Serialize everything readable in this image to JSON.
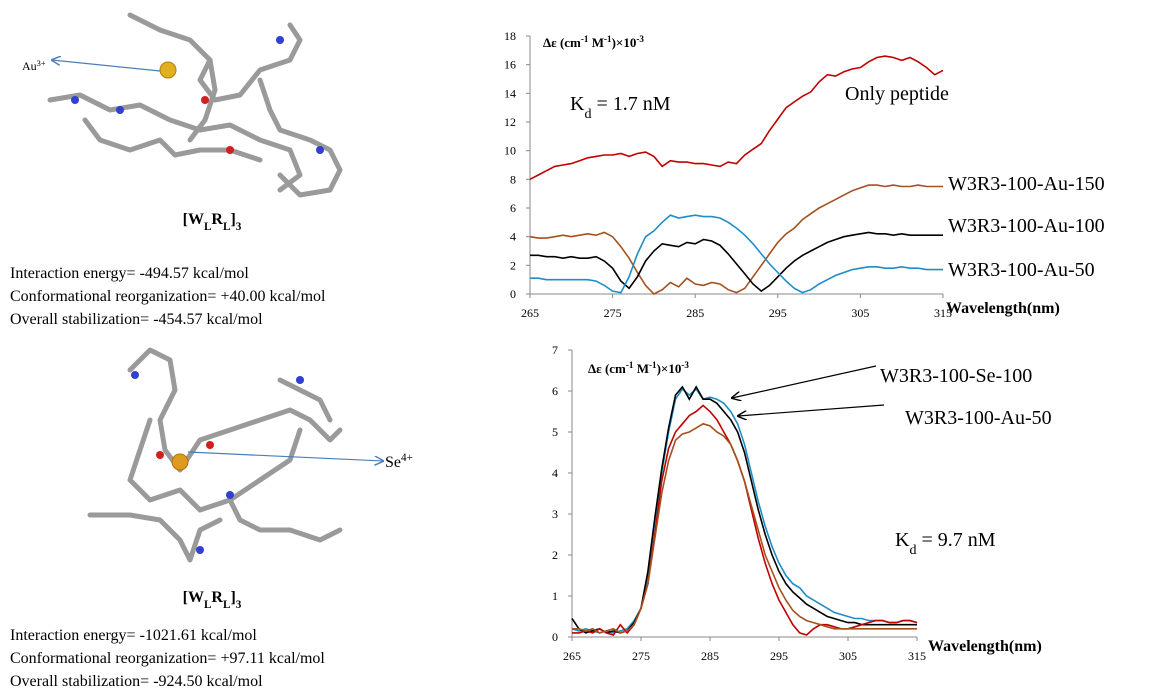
{
  "structures": [
    {
      "ion": [
        {
          "text": "Au"
        },
        {
          "text": "3+",
          "sup": true
        }
      ],
      "label": [
        {
          "text": "[W"
        },
        {
          "text": "L",
          "sub": true
        },
        {
          "text": "R"
        },
        {
          "text": "L",
          "sub": true
        },
        {
          "text": "]"
        },
        {
          "text": "3",
          "sub": true
        }
      ],
      "lines": [
        "Interaction energy= -494.57 kcal/mol",
        "Conformational reorganization= +40.00 kcal/mol",
        "Overall stabilization= -454.57 kcal/mol"
      ]
    },
    {
      "ion": [
        {
          "text": "Se"
        },
        {
          "text": "4+",
          "sup": true
        }
      ],
      "label": [
        {
          "text": "[W"
        },
        {
          "text": "L",
          "sub": true
        },
        {
          "text": "R"
        },
        {
          "text": "L",
          "sub": true
        },
        {
          "text": "]"
        },
        {
          "text": "3",
          "sub": true
        }
      ],
      "lines": [
        "Interaction energy= -1021.61 kcal/mol",
        "Conformational reorganization= +97.11 kcal/mol",
        "Overall stabilization= -924.50 kcal/mol"
      ]
    }
  ],
  "chart_data": [
    {
      "type": "line",
      "y_label": [
        {
          "text": "Δε (cm"
        },
        {
          "text": "-1",
          "sup": true
        },
        {
          "text": " M"
        },
        {
          "text": "-1",
          "sup": true
        },
        {
          "text": ")×10"
        },
        {
          "text": "-3",
          "sup": true
        }
      ],
      "x_label": "Wavelength(nm)",
      "x": [
        265,
        266,
        267,
        268,
        269,
        270,
        271,
        272,
        273,
        274,
        275,
        276,
        277,
        278,
        279,
        280,
        281,
        282,
        283,
        284,
        285,
        286,
        287,
        288,
        289,
        290,
        291,
        292,
        293,
        294,
        295,
        296,
        297,
        298,
        299,
        300,
        301,
        302,
        303,
        304,
        305,
        306,
        307,
        308,
        309,
        310,
        311,
        312,
        313,
        314,
        315
      ],
      "xlim": [
        265,
        315
      ],
      "xticks": [
        265,
        275,
        285,
        295,
        305,
        315
      ],
      "ylim": [
        0,
        18
      ],
      "yticks": [
        0,
        2,
        4,
        6,
        8,
        10,
        12,
        14,
        16,
        18
      ],
      "annotations": [
        {
          "parts": [
            {
              "text": "K"
            },
            {
              "text": "d",
              "sub": true
            },
            {
              "text": " = 1.7 nM"
            }
          ]
        }
      ],
      "series": [
        {
          "name": "Only peptide",
          "color": "#c00000",
          "values": [
            8.0,
            8.3,
            8.6,
            8.9,
            9.0,
            9.1,
            9.3,
            9.5,
            9.6,
            9.7,
            9.7,
            9.8,
            9.6,
            9.8,
            9.9,
            9.6,
            8.9,
            9.3,
            9.2,
            9.2,
            9.1,
            9.1,
            9.0,
            8.9,
            9.2,
            9.1,
            9.7,
            10.1,
            10.5,
            11.4,
            12.2,
            13.0,
            13.4,
            13.8,
            14.1,
            14.8,
            15.3,
            15.2,
            15.5,
            15.7,
            15.8,
            16.2,
            16.5,
            16.6,
            16.5,
            16.3,
            16.5,
            16.2,
            15.8,
            15.3,
            15.6
          ]
        },
        {
          "name": "W3R3-100-Au-150",
          "color": "#a5501e",
          "values": [
            4.0,
            3.9,
            3.9,
            4.0,
            4.1,
            4.0,
            4.1,
            4.2,
            4.1,
            4.3,
            4.0,
            3.3,
            2.5,
            1.5,
            0.6,
            0.0,
            0.3,
            0.8,
            0.5,
            1.1,
            0.7,
            0.6,
            0.8,
            0.7,
            0.3,
            0.1,
            0.4,
            1.2,
            2.0,
            2.8,
            3.6,
            4.2,
            4.6,
            5.2,
            5.6,
            6.0,
            6.3,
            6.6,
            6.9,
            7.2,
            7.4,
            7.6,
            7.6,
            7.5,
            7.6,
            7.5,
            7.5,
            7.6,
            7.5,
            7.5,
            7.5
          ]
        },
        {
          "name": "W3R3-100-Au-100",
          "color": "#000000",
          "values": [
            2.7,
            2.7,
            2.6,
            2.6,
            2.5,
            2.6,
            2.5,
            2.5,
            2.6,
            2.3,
            1.8,
            0.9,
            0.4,
            1.2,
            2.3,
            3.0,
            3.5,
            3.4,
            3.3,
            3.6,
            3.5,
            3.8,
            3.7,
            3.4,
            2.8,
            2.1,
            1.4,
            0.7,
            0.2,
            0.6,
            1.2,
            1.8,
            2.3,
            2.7,
            3.0,
            3.3,
            3.6,
            3.8,
            4.0,
            4.1,
            4.2,
            4.3,
            4.2,
            4.2,
            4.1,
            4.2,
            4.1,
            4.1,
            4.1,
            4.1,
            4.1
          ]
        },
        {
          "name": "W3R3-100-Au-50",
          "color": "#1f8dc8",
          "values": [
            1.1,
            1.1,
            1.0,
            1.0,
            1.0,
            1.0,
            1.0,
            1.0,
            0.9,
            0.6,
            0.2,
            0.1,
            1.2,
            2.8,
            4.0,
            4.4,
            5.0,
            5.5,
            5.3,
            5.4,
            5.5,
            5.4,
            5.4,
            5.3,
            5.0,
            4.6,
            4.1,
            3.5,
            2.8,
            2.1,
            1.5,
            0.9,
            0.4,
            0.1,
            0.3,
            0.7,
            1.0,
            1.3,
            1.5,
            1.7,
            1.8,
            1.9,
            1.9,
            1.8,
            1.8,
            1.9,
            1.8,
            1.8,
            1.7,
            1.7,
            1.7
          ]
        }
      ]
    },
    {
      "type": "line",
      "y_label": [
        {
          "text": "Δε (cm"
        },
        {
          "text": "-1",
          "sup": true
        },
        {
          "text": " M"
        },
        {
          "text": "-1",
          "sup": true
        },
        {
          "text": ")×10"
        },
        {
          "text": "-3",
          "sup": true
        }
      ],
      "x_label": "Wavelength(nm)",
      "x": [
        265,
        266,
        267,
        268,
        269,
        270,
        271,
        272,
        273,
        274,
        275,
        276,
        277,
        278,
        279,
        280,
        281,
        282,
        283,
        284,
        285,
        286,
        287,
        288,
        289,
        290,
        291,
        292,
        293,
        294,
        295,
        296,
        297,
        298,
        299,
        300,
        301,
        302,
        303,
        304,
        305,
        306,
        307,
        308,
        309,
        310,
        311,
        312,
        313,
        314,
        315
      ],
      "xlim": [
        265,
        315
      ],
      "xticks": [
        265,
        275,
        285,
        295,
        305,
        315
      ],
      "ylim": [
        0,
        7
      ],
      "yticks": [
        0,
        1,
        2,
        3,
        4,
        5,
        6,
        7
      ],
      "annotations": [
        {
          "parts": [
            {
              "text": "W3R3-100-Se-100"
            }
          ]
        },
        {
          "parts": [
            {
              "text": "W3R3-100-Au-50"
            }
          ]
        },
        {
          "parts": [
            {
              "text": "K"
            },
            {
              "text": "d",
              "sub": true
            },
            {
              "text": " = 9.7 nM"
            }
          ]
        }
      ],
      "series": [
        {
          "color": "#1f8dc8",
          "values": [
            0.2,
            0.15,
            0.2,
            0.15,
            0.1,
            0.15,
            0.1,
            0.15,
            0.2,
            0.4,
            0.7,
            1.5,
            2.8,
            4.0,
            5.0,
            5.8,
            6.05,
            5.9,
            6.05,
            5.8,
            5.85,
            5.8,
            5.7,
            5.5,
            5.2,
            4.7,
            4.0,
            3.3,
            2.7,
            2.2,
            1.8,
            1.5,
            1.3,
            1.2,
            1.0,
            0.9,
            0.8,
            0.7,
            0.6,
            0.55,
            0.5,
            0.45,
            0.45,
            0.4,
            0.4,
            0.4,
            0.35,
            0.35,
            0.4,
            0.4,
            0.35
          ]
        },
        {
          "color": "#000000",
          "values": [
            0.45,
            0.2,
            0.1,
            0.15,
            0.2,
            0.1,
            0.15,
            0.1,
            0.15,
            0.35,
            0.7,
            1.6,
            2.9,
            4.1,
            5.1,
            5.9,
            6.1,
            5.8,
            6.1,
            5.8,
            5.8,
            5.7,
            5.5,
            5.3,
            5.0,
            4.5,
            3.8,
            3.1,
            2.5,
            2.0,
            1.6,
            1.3,
            1.1,
            0.95,
            0.8,
            0.7,
            0.6,
            0.5,
            0.45,
            0.4,
            0.35,
            0.35,
            0.3,
            0.3,
            0.3,
            0.3,
            0.3,
            0.3,
            0.3,
            0.3,
            0.3
          ]
        },
        {
          "color": "#c00000",
          "values": [
            0.1,
            0.1,
            0.15,
            0.1,
            0.2,
            0.1,
            0.05,
            0.3,
            0.1,
            0.3,
            0.7,
            1.3,
            2.5,
            3.8,
            4.6,
            5.0,
            5.2,
            5.4,
            5.5,
            5.65,
            5.5,
            5.3,
            5.0,
            4.7,
            4.3,
            3.8,
            3.1,
            2.4,
            1.8,
            1.3,
            0.9,
            0.6,
            0.3,
            0.1,
            0.05,
            0.2,
            0.3,
            0.3,
            0.25,
            0.2,
            0.2,
            0.25,
            0.3,
            0.35,
            0.4,
            0.4,
            0.35,
            0.35,
            0.4,
            0.4,
            0.35
          ]
        },
        {
          "color": "#a5501e",
          "values": [
            0.2,
            0.2,
            0.15,
            0.2,
            0.1,
            0.15,
            0.2,
            0.1,
            0.15,
            0.3,
            0.7,
            1.3,
            2.4,
            3.5,
            4.3,
            4.8,
            4.95,
            5.0,
            5.1,
            5.2,
            5.15,
            5.0,
            4.9,
            4.7,
            4.3,
            3.8,
            3.2,
            2.6,
            2.0,
            1.6,
            1.2,
            0.9,
            0.65,
            0.5,
            0.4,
            0.35,
            0.3,
            0.25,
            0.2,
            0.2,
            0.2,
            0.2,
            0.2,
            0.2,
            0.2,
            0.2,
            0.2,
            0.2,
            0.2,
            0.2,
            0.2
          ]
        }
      ]
    }
  ]
}
